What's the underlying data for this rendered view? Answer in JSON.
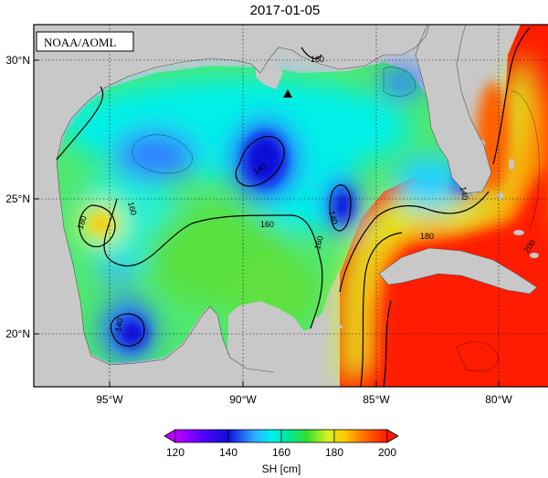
{
  "title": "2017-01-05",
  "credit": "NOAA/AOML",
  "map": {
    "lat_labels": [
      "30°N",
      "25°N",
      "20°N"
    ],
    "lon_labels": [
      "95°W",
      "90°W",
      "85°W",
      "80°W"
    ],
    "marker": "triangle-marker",
    "contour_labels": [
      "160",
      "140",
      "140",
      "180",
      "160",
      "160",
      "160",
      "140",
      "140",
      "180",
      "200"
    ]
  },
  "colorbar": {
    "label": "SH [cm]",
    "ticks": [
      "120",
      "140",
      "160",
      "180",
      "200"
    ],
    "range": [
      120,
      200
    ],
    "colors": {
      "c120": "#c000ff",
      "c130": "#5a00ff",
      "c140": "#1010d8",
      "c150": "#2fa8ff",
      "c155": "#00f0f0",
      "c162": "#00e8a0",
      "c170": "#30e030",
      "c178": "#d8f020",
      "c184": "#ffc800",
      "c190": "#ff7800",
      "c200": "#ff1800"
    }
  },
  "colors": {
    "land": "#c8c8c8",
    "frame": "#000000",
    "gulf_water": "#4fe86f",
    "loop_current": "#ff1c00"
  }
}
